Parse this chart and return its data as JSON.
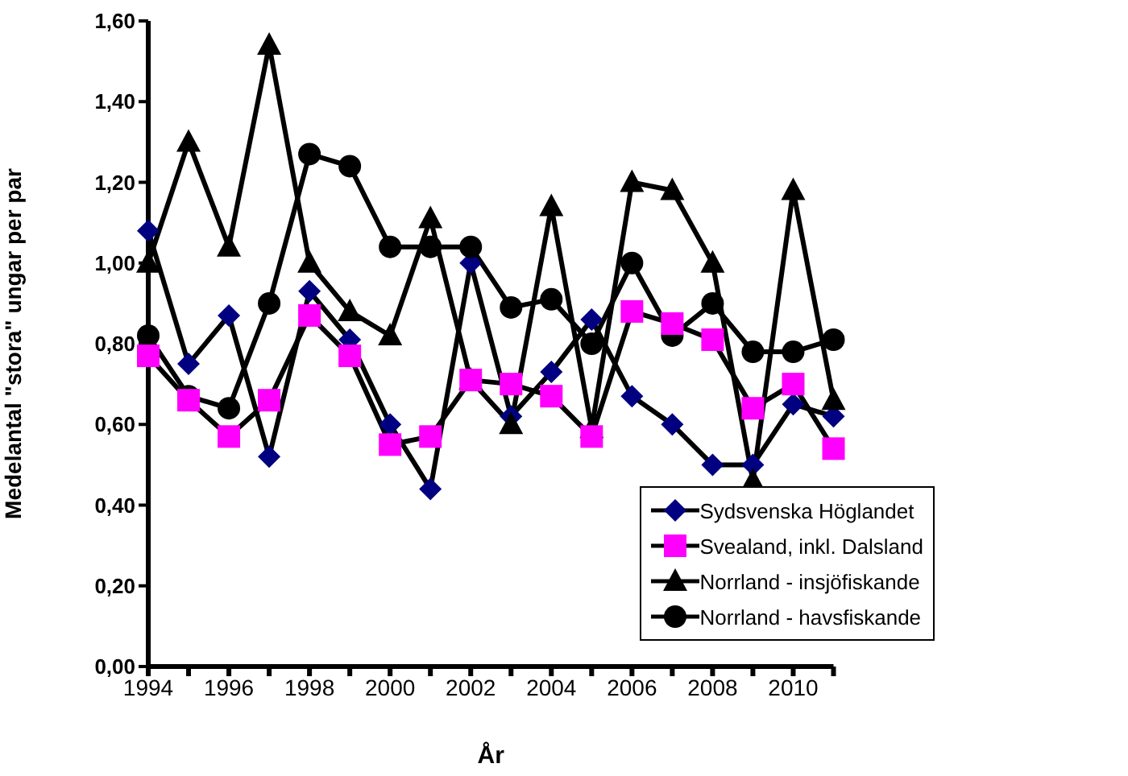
{
  "chart_data": {
    "type": "line",
    "xlabel": "År",
    "ylabel": "Medelantal \"stora\" ungar per par",
    "categories": [
      "1994",
      null,
      "1996",
      null,
      "1998",
      null,
      "2000",
      null,
      "2002",
      null,
      "2004",
      null,
      "2006",
      null,
      "2008",
      null,
      "2010",
      null
    ],
    "series": [
      {
        "name": "Sydsvenska Höglandet",
        "color": "#000080",
        "marker": "diamond",
        "values": [
          1.08,
          0.75,
          0.87,
          0.52,
          0.93,
          0.81,
          0.6,
          0.44,
          1.0,
          0.62,
          0.73,
          0.86,
          0.67,
          0.6,
          0.5,
          0.5,
          0.65,
          0.62
        ]
      },
      {
        "name": "Svealand, inkl. Dalsland",
        "color": "#ff00ff",
        "marker": "square",
        "values": [
          0.77,
          0.66,
          0.57,
          0.66,
          0.87,
          0.77,
          0.55,
          0.57,
          0.71,
          0.7,
          0.67,
          0.57,
          0.88,
          0.85,
          0.81,
          0.64,
          0.7,
          0.54
        ]
      },
      {
        "name": "Norrland - insjöfiskande",
        "color": "#000000",
        "marker": "triangle",
        "values": [
          1.0,
          1.3,
          1.04,
          1.54,
          1.0,
          0.88,
          0.82,
          1.11,
          0.71,
          0.6,
          1.14,
          0.59,
          1.2,
          1.18,
          1.0,
          0.46,
          1.18,
          0.66
        ]
      },
      {
        "name": "Norrland - havsfiskande",
        "color": "#000000",
        "marker": "circle",
        "values": [
          0.82,
          0.67,
          0.64,
          0.9,
          1.27,
          1.24,
          1.04,
          1.04,
          1.04,
          0.89,
          0.91,
          0.8,
          1.0,
          0.82,
          0.9,
          0.78,
          0.78,
          0.81
        ]
      }
    ],
    "ylim": [
      0,
      1.6
    ],
    "yticks": [
      {
        "value": 0,
        "label": "0,00"
      },
      {
        "value": 0.2,
        "label": "0,20"
      },
      {
        "value": 0.4,
        "label": "0,40"
      },
      {
        "value": 0.6,
        "label": "0,60"
      },
      {
        "value": 0.8,
        "label": "0,80"
      },
      {
        "value": 1.0,
        "label": "1,00"
      },
      {
        "value": 1.2,
        "label": "1,20"
      },
      {
        "value": 1.4,
        "label": "1,40"
      },
      {
        "value": 1.6,
        "label": "1,60"
      }
    ],
    "grid": false,
    "legend": "bottom right"
  }
}
